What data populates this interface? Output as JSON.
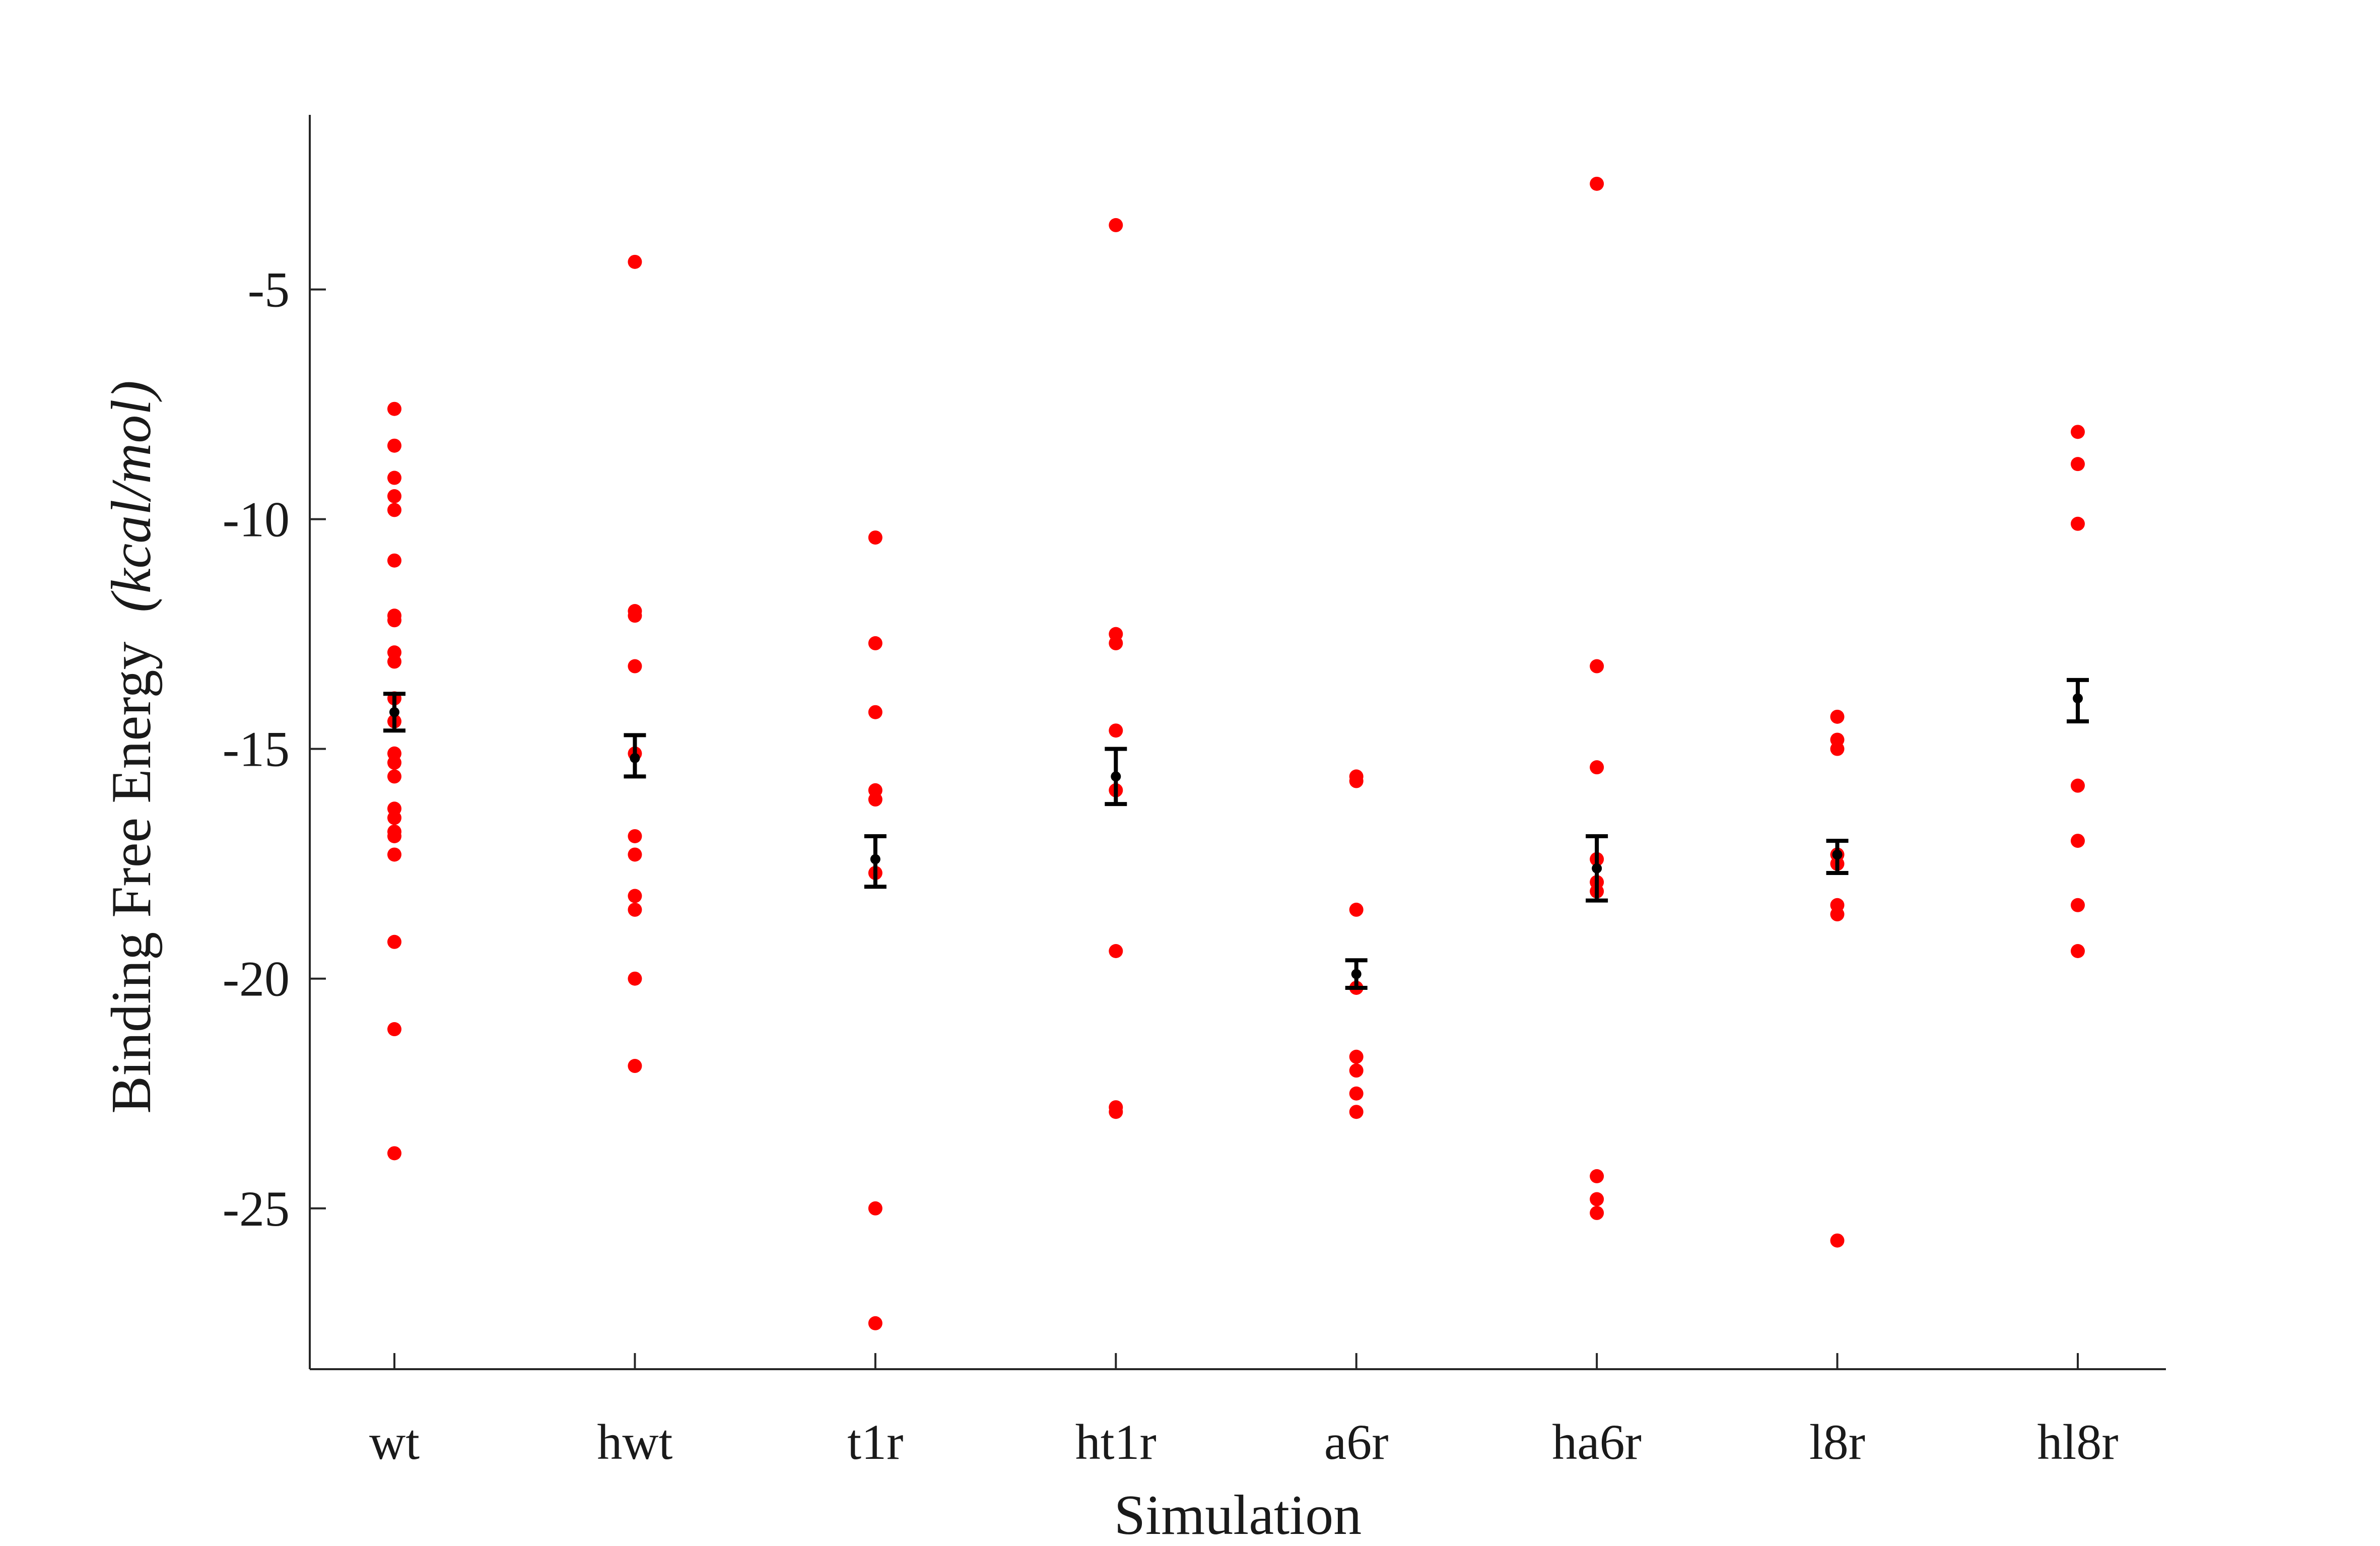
{
  "chart_data": {
    "type": "scatter",
    "xlabel": "Simulation",
    "ylabel": "Binding Free Energy",
    "ylabel_unit": "(kcal/mol)",
    "ylim": [
      -28.5,
      -1.2
    ],
    "yticks": [
      -25,
      -20,
      -15,
      -10,
      -5
    ],
    "grid": false,
    "categories": [
      "wt",
      "hwt",
      "t1r",
      "ht1r",
      "a6r",
      "ha6r",
      "l8r",
      "hl8r"
    ],
    "point_color": "#ff0000",
    "errorbar_color": "#000000",
    "series": [
      {
        "values": [
          [
            -7.6,
            -8.4,
            -9.1,
            -9.5,
            -9.8,
            -10.9,
            -12.1,
            -12.2,
            -12.9,
            -13.1,
            -13.9,
            -14.4,
            -15.1,
            -15.3,
            -15.6,
            -16.3,
            -16.5,
            -16.8,
            -16.9,
            -17.3,
            -19.2,
            -21.1,
            -23.8
          ],
          [
            -4.4,
            -12.0,
            -12.1,
            -13.2,
            -15.1,
            -16.9,
            -17.3,
            -18.2,
            -18.5,
            -20.0,
            -21.9
          ],
          [
            -10.4,
            -12.7,
            -14.2,
            -15.9,
            -16.1,
            -17.7,
            -25.0,
            -27.5
          ],
          [
            -3.6,
            -12.5,
            -12.7,
            -14.6,
            -15.9,
            -19.4,
            -22.8,
            -22.9
          ],
          [
            -15.6,
            -15.7,
            -18.5,
            -20.2,
            -21.7,
            -22.0,
            -22.5,
            -22.9
          ],
          [
            -2.7,
            -13.2,
            -15.4,
            -17.4,
            -17.9,
            -18.1,
            -24.3,
            -24.8,
            -25.1
          ],
          [
            -14.3,
            -14.8,
            -15.0,
            -17.3,
            -17.5,
            -18.4,
            -18.6,
            -25.7
          ],
          [
            -8.1,
            -8.8,
            -10.1,
            -15.8,
            -17.0,
            -18.4,
            -19.4
          ]
        ]
      },
      {
        "means": [
          -14.2,
          -15.2,
          -17.4,
          -15.6,
          -19.9,
          -17.6,
          -17.3,
          -13.9
        ],
        "err_upper": [
          -13.8,
          -14.7,
          -16.9,
          -15.0,
          -19.6,
          -16.9,
          -17.0,
          -13.5
        ],
        "err_lower": [
          -14.6,
          -15.6,
          -18.0,
          -16.2,
          -20.2,
          -18.3,
          -17.7,
          -14.4
        ]
      }
    ]
  }
}
